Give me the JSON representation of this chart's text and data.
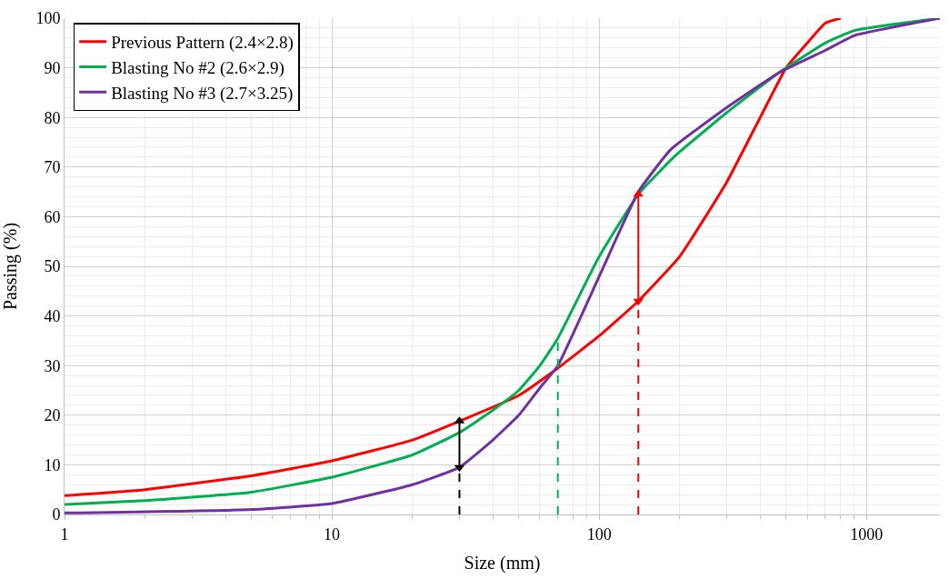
{
  "chart_data": {
    "type": "line",
    "xlabel": "Size (mm)",
    "ylabel": "Passing (%)",
    "log": "x",
    "xlim": [
      1,
      1880
    ],
    "xticks": [
      1,
      10,
      100,
      1000
    ],
    "ylim": [
      0,
      100
    ],
    "yticks": [
      0,
      10,
      20,
      30,
      40,
      50,
      60,
      70,
      80,
      90,
      100
    ],
    "grid": true,
    "legend": "top left",
    "line_style": "solid",
    "series": [
      {
        "name": "Previous Pattern (2.4×2.8)",
        "color": "#ff0000",
        "x": [
          1,
          2,
          5,
          10,
          20,
          30,
          50,
          70,
          100,
          140,
          200,
          300,
          400,
          500,
          600,
          700,
          800
        ],
        "values": [
          3.8,
          5,
          7.8,
          10.8,
          15,
          18.8,
          24,
          29.5,
          36,
          43,
          52,
          67,
          80,
          90,
          95,
          99,
          100
        ]
      },
      {
        "name": "Blasting No #2 (2.6×2.9)",
        "color": "#00b050",
        "x": [
          1,
          2,
          5,
          10,
          20,
          30,
          40,
          50,
          60,
          70,
          100,
          140,
          190,
          300,
          470,
          700,
          900,
          1880
        ],
        "values": [
          2,
          2.8,
          4.5,
          7.5,
          12,
          16.5,
          21,
          25,
          30,
          35.5,
          52,
          64.5,
          72,
          81,
          89,
          95,
          97.5,
          100
        ]
      },
      {
        "name": "Blasting No #3 (2.7×3.25)",
        "color": "#7030a0",
        "x": [
          1,
          5,
          10,
          20,
          30,
          40,
          50,
          60,
          70,
          100,
          140,
          185,
          300,
          470,
          700,
          900,
          1880
        ],
        "values": [
          0.3,
          1,
          2.2,
          6,
          9.5,
          15,
          20,
          25.5,
          30,
          48,
          65,
          73.5,
          82,
          89,
          93.5,
          96.5,
          100
        ]
      },
      {
        "color": "#000000",
        "line_style": "dashed",
        "x": [
          30,
          30
        ],
        "values": [
          0,
          9.5
        ]
      },
      {
        "color": "#00b050",
        "line_style": "dashed",
        "x": [
          70,
          70
        ],
        "values": [
          0,
          35.5
        ]
      },
      {
        "color": "#ff0000",
        "line_style": "dashed",
        "x": [
          140,
          140
        ],
        "values": [
          0,
          43
        ]
      },
      {
        "color": "#000000",
        "marker": "triangle",
        "x": [
          30,
          30
        ],
        "values": [
          9.5,
          18.8
        ]
      },
      {
        "color": "#ff0000",
        "marker": "triangle",
        "x": [
          140,
          140
        ],
        "values": [
          43,
          64.5
        ]
      }
    ]
  }
}
